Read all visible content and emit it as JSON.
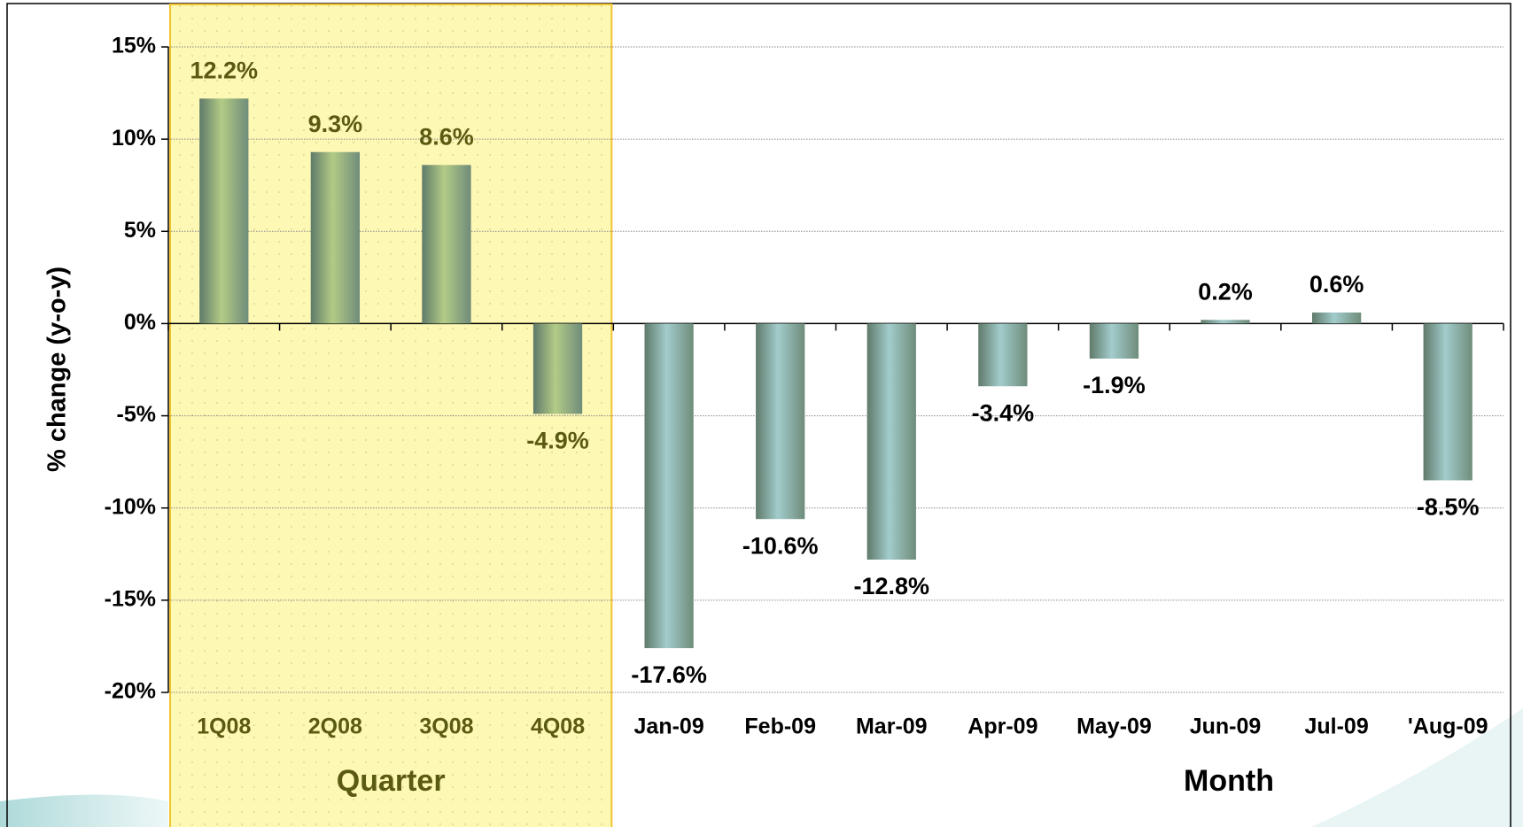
{
  "chart_data": {
    "type": "bar",
    "y_label": "% change (y-o-y)",
    "categories": [
      "1Q08",
      "2Q08",
      "3Q08",
      "4Q08",
      "Jan-09",
      "Feb-09",
      "Mar-09",
      "Apr-09",
      "May-09",
      "Jun-09",
      "Jul-09",
      "'Aug-09"
    ],
    "series": [
      {
        "name": "Quarter",
        "color": "#b3cb86",
        "label_color": "#5b5a12",
        "values": [
          12.2,
          9.3,
          8.6,
          -4.9,
          null,
          null,
          null,
          null,
          null,
          null,
          null,
          null
        ],
        "value_labels": [
          "12.2%",
          "9.3%",
          "8.6%",
          "-4.9%",
          null,
          null,
          null,
          null,
          null,
          null,
          null,
          null
        ]
      },
      {
        "name": "Month",
        "color": "#a2cccc",
        "label_color": "#000000",
        "values": [
          null,
          null,
          null,
          null,
          -17.6,
          -10.6,
          -12.8,
          -3.4,
          -1.9,
          0.2,
          0.6,
          -8.5
        ],
        "value_labels": [
          null,
          null,
          null,
          null,
          "-17.6%",
          "-10.6%",
          "-12.8%",
          "-3.4%",
          "-1.9%",
          "0.2%",
          "0.6%",
          "-8.5%"
        ]
      }
    ],
    "ylim": [
      -20,
      15
    ],
    "yticks": [
      {
        "value": -20,
        "label": "-20%"
      },
      {
        "value": -15,
        "label": "-15%"
      },
      {
        "value": -10,
        "label": "-10%"
      },
      {
        "value": -5,
        "label": "-5%"
      },
      {
        "value": 0,
        "label": "0%"
      },
      {
        "value": 5,
        "label": "5%"
      },
      {
        "value": 10,
        "label": "10%"
      },
      {
        "value": 15,
        "label": "15%"
      }
    ],
    "grid": true,
    "highlight_color": "#fdf8b4"
  }
}
